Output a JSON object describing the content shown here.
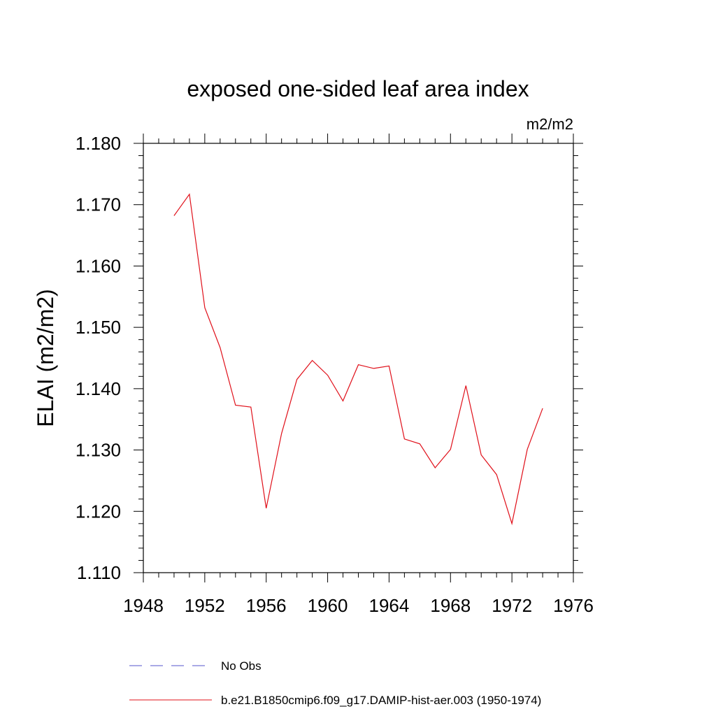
{
  "chart_data": {
    "type": "line",
    "title": "exposed one-sided leaf area index",
    "units_label": "m2/m2",
    "ylabel": "ELAI  (m2/m2)",
    "xlabel": "",
    "xlim": [
      1948,
      1976
    ],
    "ylim": [
      1.11,
      1.18
    ],
    "xticks": [
      "1948",
      "1952",
      "1956",
      "1960",
      "1964",
      "1968",
      "1972",
      "1976"
    ],
    "yticks": [
      "1.110",
      "1.120",
      "1.130",
      "1.140",
      "1.150",
      "1.160",
      "1.170",
      "1.180"
    ],
    "grid": false,
    "legend_position": "bottom",
    "legend": [
      {
        "label": "No Obs",
        "color": "#5555cc",
        "style": "dashed"
      },
      {
        "label": "b.e21.B1850cmip6.f09_g17.DAMIP-hist-aer.003 (1950-1974)",
        "color": "#e0101a",
        "style": "solid"
      }
    ],
    "series": [
      {
        "name": "b.e21.B1850cmip6.f09_g17.DAMIP-hist-aer.003 (1950-1974)",
        "color": "#e0101a",
        "x": [
          1950,
          1951,
          1952,
          1953,
          1954,
          1955,
          1956,
          1957,
          1958,
          1959,
          1960,
          1961,
          1962,
          1963,
          1964,
          1965,
          1966,
          1967,
          1968,
          1969,
          1970,
          1971,
          1972,
          1973,
          1974
        ],
        "values": [
          1.1682,
          1.1717,
          1.1532,
          1.1467,
          1.1373,
          1.137,
          1.1205,
          1.1327,
          1.1415,
          1.1446,
          1.1422,
          1.138,
          1.1439,
          1.1433,
          1.1437,
          1.1318,
          1.131,
          1.1271,
          1.1301,
          1.1405,
          1.1292,
          1.126,
          1.118,
          1.1301,
          1.1368
        ]
      }
    ]
  }
}
